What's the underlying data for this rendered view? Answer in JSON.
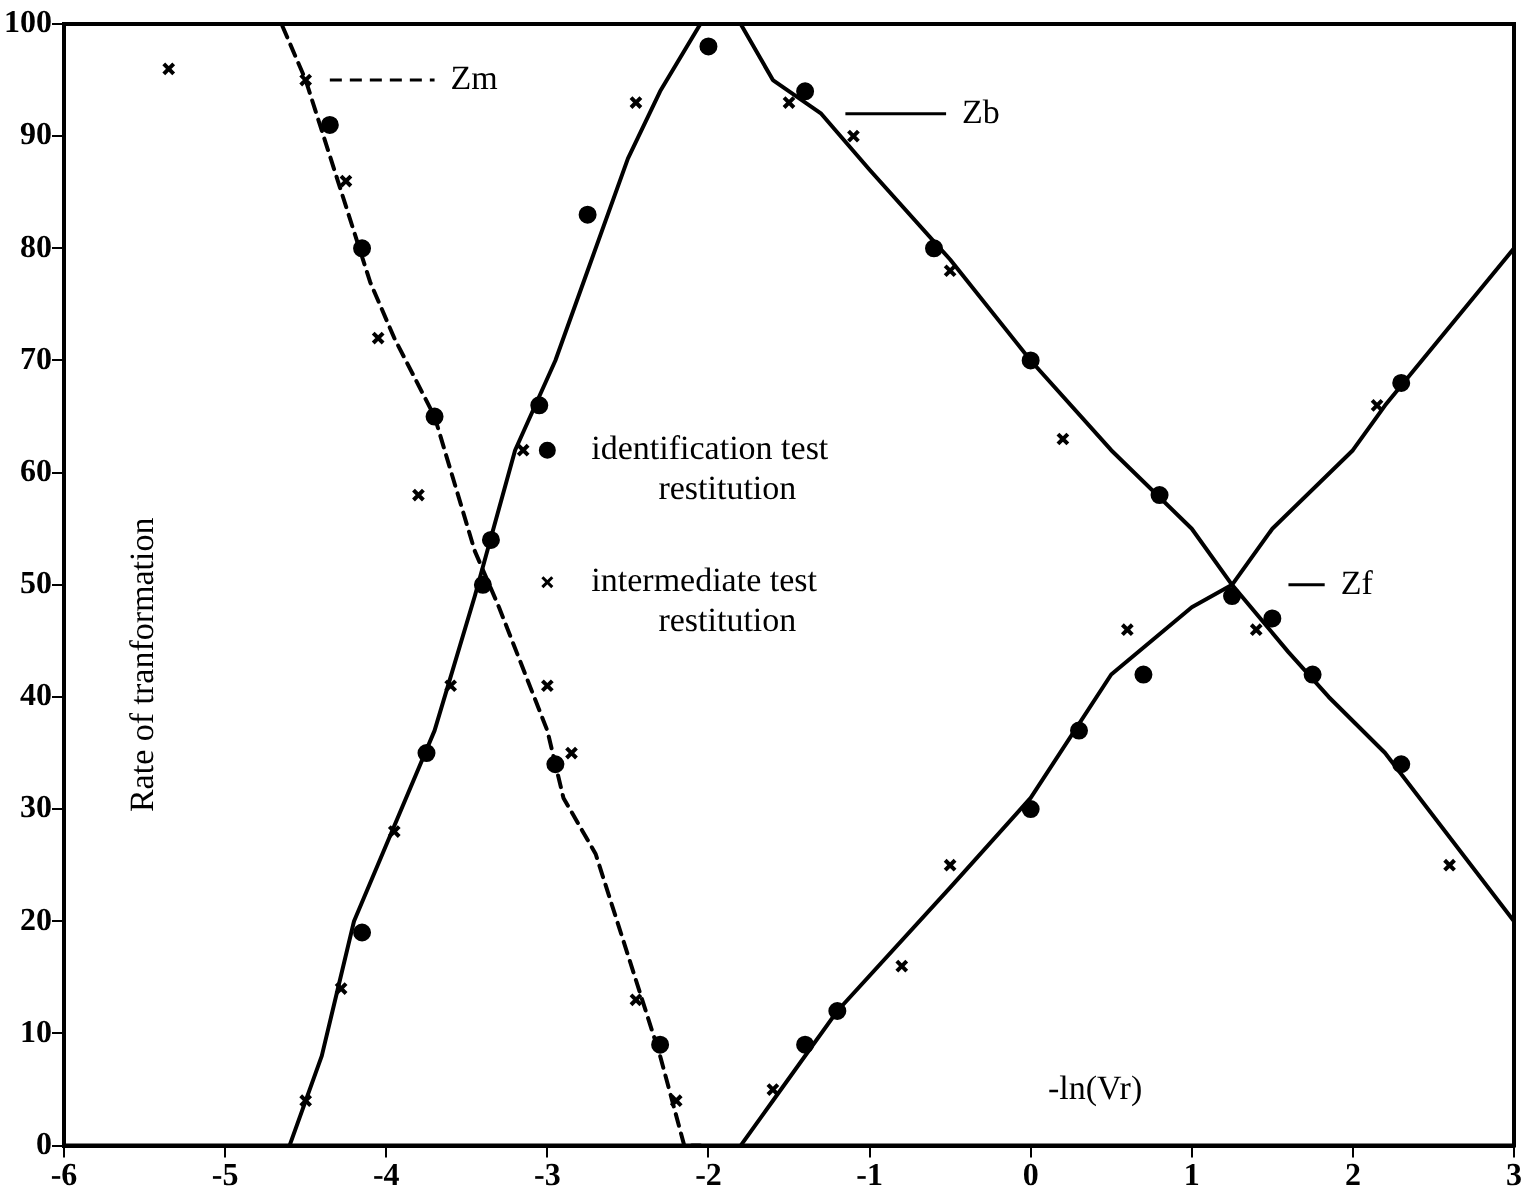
{
  "chart_data": {
    "type": "line",
    "xlabel": "-ln(Vr)",
    "ylabel": "Rate of tranformation",
    "xlim": [
      -6,
      3
    ],
    "xticks": [
      -6,
      -5,
      -4,
      -3,
      -2,
      -1,
      0,
      1,
      2,
      3
    ],
    "ylim": [
      0,
      100
    ],
    "yticks": [
      0,
      10,
      20,
      30,
      40,
      50,
      60,
      70,
      80,
      90,
      100
    ],
    "grid": false,
    "legend": "center",
    "series": [
      {
        "name": "Zm",
        "color": "#000000",
        "marker": "none",
        "line_style": "dashed",
        "x": [
          -6,
          -4.65,
          -4.5,
          -4.3,
          -4.1,
          -3.95,
          -3.7,
          -3.45,
          -3.3,
          -3.0,
          -2.9,
          -2.7,
          -2.5,
          -2.3,
          -2.15,
          -2.05
        ],
        "values": [
          100,
          100,
          95,
          86,
          77,
          72,
          65,
          53,
          48,
          37,
          31,
          26,
          17,
          8,
          0,
          0
        ]
      },
      {
        "name": "Zb",
        "color": "#000000",
        "marker": "none",
        "line_style": "solid",
        "x": [
          -4.6,
          -4.4,
          -4.2,
          -3.7,
          -3.45,
          -3.2,
          -2.95,
          -2.75,
          -2.5,
          -2.3,
          -2.05,
          -1.8,
          -1.6,
          -1.3,
          -1.0,
          -0.5,
          0,
          0.5,
          1.0,
          1.25,
          1.6,
          1.85,
          2.2,
          3
        ],
        "values": [
          0,
          8,
          20,
          37,
          49,
          62,
          70,
          78,
          88,
          94,
          100,
          100,
          95,
          92,
          87,
          79,
          70,
          62,
          55,
          50,
          44,
          40,
          35,
          20
        ]
      },
      {
        "name": "Zf",
        "color": "#000000",
        "marker": "none",
        "line_style": "solid",
        "x": [
          -1.8,
          -1.6,
          -1.2,
          -0.5,
          0,
          0.5,
          1.0,
          1.25,
          1.5,
          2.0,
          2.2,
          3
        ],
        "values": [
          0,
          4,
          12,
          23,
          31,
          42,
          48,
          50,
          55,
          62,
          66,
          80
        ]
      },
      {
        "type": "scatter",
        "name": "identification test restitution",
        "color": "#000000",
        "marker": "circle",
        "x": [
          -4.35,
          -4.15,
          -3.7,
          -3.4,
          -2.95,
          -2.3,
          -4.15,
          -3.75,
          -3.35,
          -3.05,
          -2.75,
          -2.0,
          -1.4,
          -0.6,
          0,
          0.8,
          1.5,
          1.75,
          2.3,
          -1.4,
          -1.2,
          0,
          0.3,
          0.7,
          1.25,
          2.3
        ],
        "values": [
          91,
          80,
          65,
          50,
          34,
          9,
          19,
          35,
          54,
          66,
          83,
          98,
          94,
          80,
          70,
          58,
          47,
          42,
          34,
          9,
          12,
          30,
          37,
          42,
          49,
          68
        ]
      },
      {
        "type": "scatter",
        "name": "intermediate test restitution",
        "color": "#000000",
        "marker": "cross",
        "x": [
          -5.35,
          -4.5,
          -4.25,
          -4.05,
          -3.8,
          -3.0,
          -2.85,
          -2.45,
          -2.2,
          -4.5,
          -4.28,
          -3.95,
          -3.6,
          -3.15,
          -2.45,
          -1.5,
          -1.1,
          -0.5,
          0.2,
          1.4,
          -1.6,
          -0.8,
          -0.5,
          0.6,
          2.15,
          2.6
        ],
        "values": [
          96,
          95,
          86,
          72,
          58,
          41,
          35,
          13,
          4,
          4,
          14,
          28,
          41,
          62,
          93,
          93,
          90,
          78,
          63,
          46,
          5,
          16,
          25,
          46,
          66,
          25
        ]
      }
    ]
  }
}
